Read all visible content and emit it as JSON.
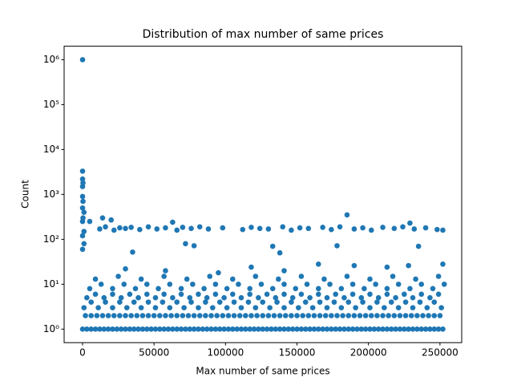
{
  "chart_data": {
    "type": "scatter",
    "title": "Distribution of max number of same prices",
    "x_label": "Max number of same prices",
    "y_label": "Count",
    "color": "#1f77b4",
    "y_log": true,
    "xlim": [
      -12900,
      265200
    ],
    "ylim": [
      0.5,
      2000000
    ],
    "xticks": [
      0,
      50000,
      100000,
      150000,
      200000,
      250000
    ],
    "yticks": [
      {
        "value": 1,
        "label": "10⁰"
      },
      {
        "value": 10,
        "label": "10¹"
      },
      {
        "value": 100,
        "label": "10²"
      },
      {
        "value": 1000,
        "label": "10³"
      },
      {
        "value": 10000,
        "label": "10⁴"
      },
      {
        "value": 100000,
        "label": "10⁵"
      },
      {
        "value": 1000000,
        "label": "10⁶"
      }
    ],
    "x": [
      0,
      3000,
      6000,
      9000,
      12000,
      15000,
      18000,
      21000,
      24000,
      27000,
      30000,
      33000,
      36000,
      39000,
      42000,
      45000,
      48000,
      51000,
      54000,
      57000,
      60000,
      63000,
      66000,
      69000,
      72000,
      75000,
      78000,
      81000,
      84000,
      87000,
      90000,
      93000,
      96000,
      99000,
      102000,
      105000,
      108000,
      111000,
      114000,
      117000,
      120000,
      123000,
      126000,
      129000,
      132000,
      135000,
      138000,
      141000,
      144000,
      147000,
      150000,
      153000,
      156000,
      159000,
      162000,
      165000,
      168000,
      171000,
      174000,
      177000,
      180000,
      183000,
      186000,
      189000,
      192000,
      195000,
      198000,
      201000,
      204000,
      207000,
      210000,
      213000,
      216000,
      219000,
      222000,
      225000,
      228000,
      231000,
      234000,
      237000,
      240000,
      243000,
      246000,
      249000,
      252000,
      2000,
      6000,
      10000,
      14000,
      18000,
      22000,
      26000,
      30000,
      34000,
      38000,
      42000,
      46000,
      50000,
      54000,
      58000,
      62000,
      66000,
      70000,
      74000,
      78000,
      82000,
      86000,
      90000,
      94000,
      98000,
      102000,
      106000,
      110000,
      114000,
      118000,
      122000,
      126000,
      130000,
      134000,
      138000,
      142000,
      146000,
      150000,
      154000,
      158000,
      162000,
      166000,
      170000,
      174000,
      178000,
      182000,
      186000,
      190000,
      194000,
      198000,
      202000,
      206000,
      210000,
      214000,
      218000,
      222000,
      226000,
      230000,
      234000,
      238000,
      242000,
      246000,
      250000,
      1000,
      6000,
      11000,
      16000,
      21000,
      26000,
      31000,
      36000,
      41000,
      46000,
      51000,
      56000,
      61000,
      66000,
      71000,
      76000,
      81000,
      86000,
      91000,
      96000,
      101000,
      106000,
      111000,
      116000,
      121000,
      126000,
      131000,
      136000,
      141000,
      146000,
      151000,
      156000,
      161000,
      166000,
      171000,
      176000,
      181000,
      186000,
      191000,
      196000,
      201000,
      206000,
      211000,
      216000,
      221000,
      226000,
      231000,
      236000,
      241000,
      246000,
      251000,
      3000,
      9000,
      15000,
      21000,
      27000,
      33000,
      39000,
      45000,
      51000,
      57000,
      63000,
      69000,
      75000,
      81000,
      87000,
      93000,
      99000,
      105000,
      111000,
      117000,
      123000,
      129000,
      135000,
      141000,
      147000,
      153000,
      159000,
      165000,
      171000,
      177000,
      183000,
      189000,
      195000,
      201000,
      207000,
      213000,
      219000,
      225000,
      231000,
      237000,
      243000,
      249000,
      5000,
      13000,
      21000,
      29000,
      37000,
      45000,
      53000,
      61000,
      69000,
      77000,
      85000,
      93000,
      101000,
      109000,
      117000,
      125000,
      133000,
      141000,
      149000,
      157000,
      165000,
      173000,
      181000,
      189000,
      197000,
      205000,
      213000,
      221000,
      229000,
      237000,
      245000,
      253000,
      9000,
      25000,
      41000,
      57000,
      73000,
      89000,
      105000,
      121000,
      137000,
      153000,
      169000,
      185000,
      201000,
      217000,
      233000,
      249000,
      30000,
      58000,
      95000,
      118000,
      141000,
      165000,
      190000,
      213000,
      228000,
      252000,
      12000,
      16000,
      22000,
      26000,
      30000,
      34000,
      40000,
      46000,
      52000,
      58000,
      66000,
      70000,
      76000,
      82000,
      88000,
      98000,
      112000,
      118000,
      124000,
      130000,
      140000,
      146000,
      152000,
      158000,
      168000,
      174000,
      180000,
      190000,
      196000,
      202000,
      210000,
      218000,
      224000,
      232000,
      240000,
      248000,
      252000,
      0,
      0,
      0,
      0,
      0,
      0,
      0,
      0,
      0,
      300,
      300,
      300,
      1000,
      1000,
      1000,
      185000,
      229000,
      63000,
      72000,
      78000,
      178000,
      235000,
      133000,
      138000,
      35000,
      14000,
      20000,
      5000
    ],
    "values": [
      1,
      1,
      1,
      1,
      1,
      1,
      1,
      1,
      1,
      1,
      1,
      1,
      1,
      1,
      1,
      1,
      1,
      1,
      1,
      1,
      1,
      1,
      1,
      1,
      1,
      1,
      1,
      1,
      1,
      1,
      1,
      1,
      1,
      1,
      1,
      1,
      1,
      1,
      1,
      1,
      1,
      1,
      1,
      1,
      1,
      1,
      1,
      1,
      1,
      1,
      1,
      1,
      1,
      1,
      1,
      1,
      1,
      1,
      1,
      1,
      1,
      1,
      1,
      1,
      1,
      1,
      1,
      1,
      1,
      1,
      1,
      1,
      1,
      1,
      1,
      1,
      1,
      1,
      1,
      1,
      1,
      1,
      1,
      1,
      1,
      2,
      2,
      2,
      2,
      2,
      2,
      2,
      2,
      2,
      2,
      2,
      2,
      2,
      2,
      2,
      2,
      2,
      2,
      2,
      2,
      2,
      2,
      2,
      2,
      2,
      2,
      2,
      2,
      2,
      2,
      2,
      2,
      2,
      2,
      2,
      2,
      2,
      2,
      2,
      2,
      2,
      2,
      2,
      2,
      2,
      2,
      2,
      2,
      2,
      2,
      2,
      2,
      2,
      2,
      2,
      2,
      2,
      2,
      2,
      2,
      2,
      2,
      2,
      3,
      4,
      3,
      4,
      3,
      4,
      3,
      4,
      3,
      4,
      3,
      4,
      3,
      4,
      3,
      4,
      3,
      4,
      3,
      4,
      3,
      4,
      3,
      4,
      3,
      4,
      3,
      4,
      3,
      4,
      3,
      4,
      3,
      4,
      3,
      4,
      3,
      4,
      3,
      4,
      3,
      4,
      3,
      4,
      3,
      4,
      3,
      4,
      3,
      4,
      3,
      5,
      6,
      5,
      6,
      5,
      6,
      5,
      6,
      5,
      6,
      5,
      6,
      5,
      6,
      5,
      6,
      5,
      6,
      5,
      6,
      5,
      6,
      5,
      6,
      5,
      6,
      5,
      6,
      5,
      6,
      5,
      6,
      5,
      6,
      5,
      6,
      5,
      6,
      5,
      6,
      5,
      6,
      8,
      10,
      8,
      10,
      8,
      10,
      8,
      10,
      8,
      10,
      8,
      10,
      8,
      10,
      8,
      10,
      8,
      10,
      8,
      10,
      8,
      10,
      8,
      10,
      8,
      10,
      8,
      10,
      8,
      10,
      8,
      10,
      13,
      15,
      13,
      15,
      13,
      15,
      13,
      15,
      13,
      15,
      13,
      15,
      13,
      15,
      13,
      15,
      22,
      20,
      18,
      24,
      20,
      28,
      26,
      24,
      26,
      28,
      170,
      190,
      160,
      180,
      175,
      185,
      165,
      190,
      170,
      180,
      160,
      185,
      175,
      190,
      170,
      180,
      165,
      185,
      175,
      170,
      190,
      160,
      180,
      175,
      185,
      165,
      190,
      170,
      180,
      160,
      185,
      175,
      190,
      170,
      180,
      165,
      160,
      1000000,
      3300,
      2200,
      1500,
      900,
      500,
      250,
      120,
      60,
      1800,
      700,
      300,
      400,
      150,
      80,
      350,
      230,
      240,
      80,
      72,
      72,
      70,
      70,
      50,
      52,
      300,
      270,
      250
    ]
  }
}
